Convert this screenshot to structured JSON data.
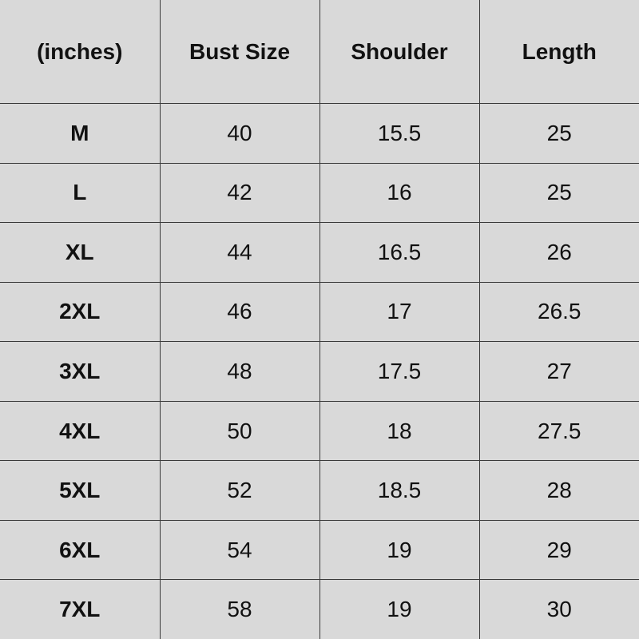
{
  "headers": [
    "(inches)",
    "Bust Size",
    "Shoulder",
    "Length"
  ],
  "rows": [
    [
      "M",
      "40",
      "15.5",
      "25"
    ],
    [
      "L",
      "42",
      "16",
      "25"
    ],
    [
      "XL",
      "44",
      "16.5",
      "26"
    ],
    [
      "2XL",
      "46",
      "17",
      "26.5"
    ],
    [
      "3XL",
      "48",
      "17.5",
      "27"
    ],
    [
      "4XL",
      "50",
      "18",
      "27.5"
    ],
    [
      "5XL",
      "52",
      "18.5",
      "28"
    ],
    [
      "6XL",
      "54",
      "19",
      "29"
    ],
    [
      "7XL",
      "58",
      "19",
      "30"
    ]
  ],
  "colors": {
    "background": "#d9d9d9",
    "border": "#3a3a3a",
    "text": "#111111"
  }
}
